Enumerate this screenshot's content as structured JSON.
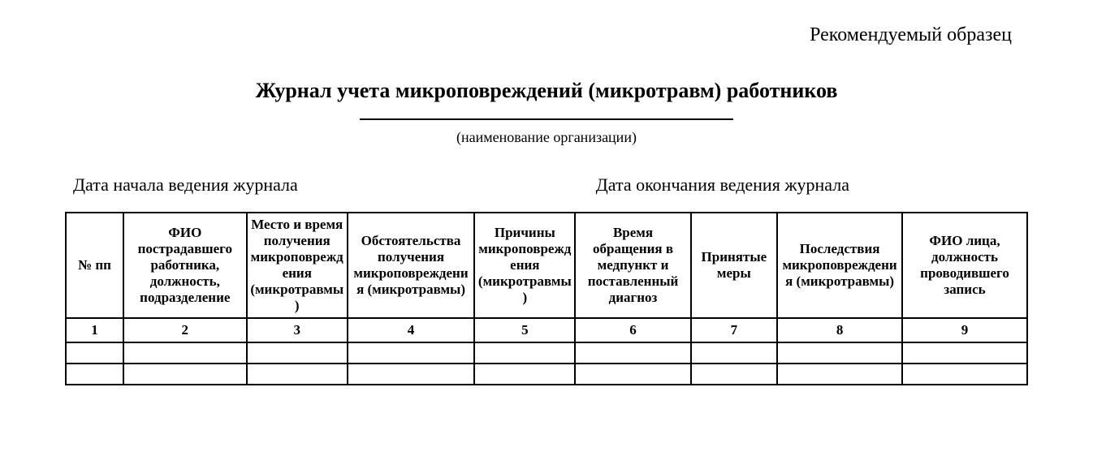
{
  "header_right": "Рекомендуемый образец",
  "title": "Журнал учета микроповреждений (микротравм) работников",
  "org_caption": "(наименование организации)",
  "date_start_label": "Дата начала ведения журнала",
  "date_end_label": "Дата окончания ведения журнала",
  "table": {
    "columns": [
      "№ пп",
      "ФИО пострадавшего работника, должность, подразделение",
      "Место и время получения микроповреждения (микротравмы)",
      "Обстоятельства получения микроповреждения (микротравмы)",
      "Причины микроповреждения (микротравмы)",
      "Время обращения в медпункт и поставленный диагноз",
      "Принятые меры",
      "Последствия микроповреждения (микротравмы)",
      "ФИО лица, должность проводившего запись"
    ],
    "column_numbers": [
      "1",
      "2",
      "3",
      "4",
      "5",
      "6",
      "7",
      "8",
      "9"
    ],
    "empty_rows": 2,
    "column_widths_pct": [
      6,
      12.8,
      10.5,
      13.2,
      10.5,
      12,
      9,
      13,
      13
    ],
    "border_color": "#000000",
    "background_color": "#ffffff",
    "header_fontsize_pt": 13,
    "body_fontsize_pt": 13,
    "font_family": "Times New Roman"
  },
  "page": {
    "title_fontsize_pt": 20,
    "header_right_fontsize_pt": 18,
    "dates_fontsize_pt": 17,
    "org_caption_fontsize_pt": 14,
    "text_color": "#000000",
    "background_color": "#ffffff"
  }
}
